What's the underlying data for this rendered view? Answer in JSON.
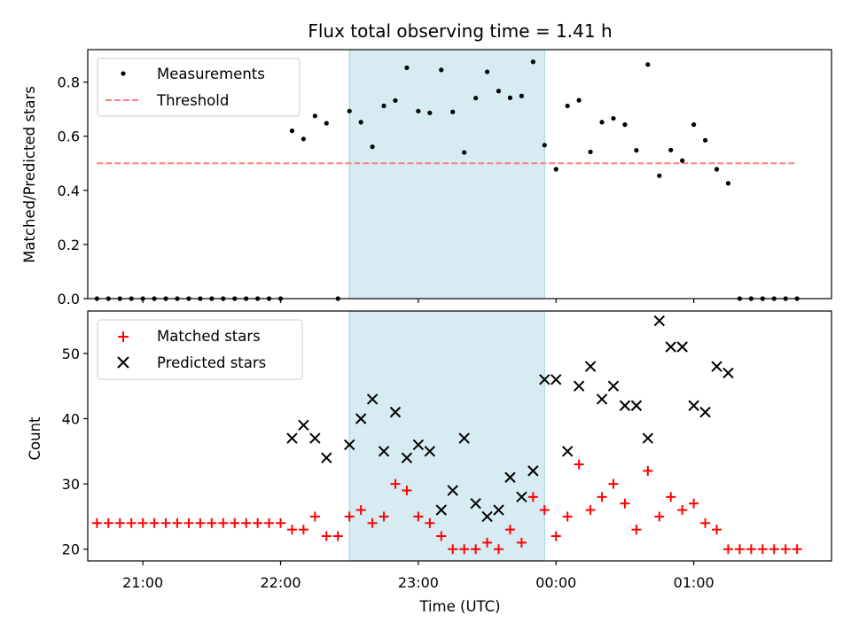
{
  "chart_data": [
    {
      "type": "scatter",
      "title": "Flux total observing time = 1.41 h",
      "xlabel": "",
      "ylabel": "Matched/Predicted stars",
      "ylim": [
        0,
        0.92
      ],
      "yticks": [
        "0.0",
        "0.2",
        "0.4",
        "0.6",
        "0.8"
      ],
      "xlim": [
        "20:36",
        "02:00"
      ],
      "observing_window": [
        "22:30",
        "23:55"
      ],
      "legend_position": "upper-left",
      "series": [
        {
          "name": "Measurements",
          "marker": "dot",
          "color": "#000000",
          "points": [
            [
              "20:40",
              0
            ],
            [
              "20:45",
              0
            ],
            [
              "20:50",
              0
            ],
            [
              "20:55",
              0
            ],
            [
              "21:00",
              0
            ],
            [
              "21:05",
              0
            ],
            [
              "21:10",
              0
            ],
            [
              "21:15",
              0
            ],
            [
              "21:20",
              0
            ],
            [
              "21:25",
              0
            ],
            [
              "21:30",
              0
            ],
            [
              "21:35",
              0
            ],
            [
              "21:40",
              0
            ],
            [
              "21:45",
              0
            ],
            [
              "21:50",
              0
            ],
            [
              "21:55",
              0
            ],
            [
              "22:00",
              0
            ],
            [
              "22:05",
              0.62
            ],
            [
              "22:10",
              0.59
            ],
            [
              "22:15",
              0.675
            ],
            [
              "22:20",
              0.648
            ],
            [
              "22:25",
              0
            ],
            [
              "22:30",
              0.693
            ],
            [
              "22:35",
              0.652
            ],
            [
              "22:40",
              0.561
            ],
            [
              "22:45",
              0.712
            ],
            [
              "22:50",
              0.732
            ],
            [
              "22:55",
              0.853
            ],
            [
              "23:00",
              0.693
            ],
            [
              "23:05",
              0.686
            ],
            [
              "23:10",
              0.845
            ],
            [
              "23:15",
              0.69
            ],
            [
              "23:20",
              0.54
            ],
            [
              "23:25",
              0.741
            ],
            [
              "23:30",
              0.838
            ],
            [
              "23:35",
              0.767
            ],
            [
              "23:40",
              0.742
            ],
            [
              "23:45",
              0.749
            ],
            [
              "23:50",
              0.875
            ],
            [
              "23:55",
              0.567
            ],
            [
              "00:00",
              0.478
            ],
            [
              "00:05",
              0.712
            ],
            [
              "00:10",
              0.733
            ],
            [
              "00:15",
              0.542
            ],
            [
              "00:20",
              0.652
            ],
            [
              "00:25",
              0.666
            ],
            [
              "00:30",
              0.643
            ],
            [
              "00:35",
              0.548
            ],
            [
              "00:40",
              0.865
            ],
            [
              "00:45",
              0.454
            ],
            [
              "00:50",
              0.549
            ],
            [
              "00:55",
              0.51
            ],
            [
              "01:00",
              0.643
            ],
            [
              "01:05",
              0.585
            ],
            [
              "01:10",
              0.478
            ],
            [
              "01:15",
              0.426
            ],
            [
              "01:20",
              0
            ],
            [
              "01:25",
              0
            ],
            [
              "01:30",
              0
            ],
            [
              "01:35",
              0
            ],
            [
              "01:40",
              0
            ],
            [
              "01:45",
              0
            ]
          ]
        },
        {
          "name": "Threshold",
          "style": "dashed",
          "color": "#ff7f7f",
          "points": [
            [
              "20:40",
              0.5
            ],
            [
              "01:45",
              0.5
            ]
          ]
        }
      ]
    },
    {
      "type": "scatter",
      "title": "",
      "xlabel": "Time (UTC)",
      "ylabel": "Count",
      "ylim": [
        18.2,
        56.5
      ],
      "yticks": [
        "20",
        "30",
        "40",
        "50"
      ],
      "xlim": [
        "20:36",
        "02:00"
      ],
      "xticks": [
        "21:00",
        "22:00",
        "23:00",
        "00:00",
        "01:00"
      ],
      "observing_window": [
        "22:30",
        "23:55"
      ],
      "legend_position": "upper-left",
      "series": [
        {
          "name": "Matched stars",
          "marker": "plus",
          "color": "#ff0000",
          "points": [
            [
              "20:40",
              24
            ],
            [
              "20:45",
              24
            ],
            [
              "20:50",
              24
            ],
            [
              "20:55",
              24
            ],
            [
              "21:00",
              24
            ],
            [
              "21:05",
              24
            ],
            [
              "21:10",
              24
            ],
            [
              "21:15",
              24
            ],
            [
              "21:20",
              24
            ],
            [
              "21:25",
              24
            ],
            [
              "21:30",
              24
            ],
            [
              "21:35",
              24
            ],
            [
              "21:40",
              24
            ],
            [
              "21:45",
              24
            ],
            [
              "21:50",
              24
            ],
            [
              "21:55",
              24
            ],
            [
              "22:00",
              24
            ],
            [
              "22:05",
              23
            ],
            [
              "22:10",
              23
            ],
            [
              "22:15",
              25
            ],
            [
              "22:20",
              22
            ],
            [
              "22:25",
              22
            ],
            [
              "22:30",
              25
            ],
            [
              "22:35",
              26
            ],
            [
              "22:40",
              24
            ],
            [
              "22:45",
              25
            ],
            [
              "22:50",
              30
            ],
            [
              "22:55",
              29
            ],
            [
              "23:00",
              25
            ],
            [
              "23:05",
              24
            ],
            [
              "23:10",
              22
            ],
            [
              "23:15",
              20
            ],
            [
              "23:20",
              20
            ],
            [
              "23:25",
              20
            ],
            [
              "23:30",
              21
            ],
            [
              "23:35",
              20
            ],
            [
              "23:40",
              23
            ],
            [
              "23:45",
              21
            ],
            [
              "23:50",
              28
            ],
            [
              "23:55",
              26
            ],
            [
              "00:00",
              22
            ],
            [
              "00:05",
              25
            ],
            [
              "00:10",
              33
            ],
            [
              "00:15",
              26
            ],
            [
              "00:20",
              28
            ],
            [
              "00:25",
              30
            ],
            [
              "00:30",
              27
            ],
            [
              "00:35",
              23
            ],
            [
              "00:40",
              32
            ],
            [
              "00:45",
              25
            ],
            [
              "00:50",
              28
            ],
            [
              "00:55",
              26
            ],
            [
              "01:00",
              27
            ],
            [
              "01:05",
              24
            ],
            [
              "01:10",
              23
            ],
            [
              "01:15",
              20
            ],
            [
              "01:20",
              20
            ],
            [
              "01:25",
              20
            ],
            [
              "01:30",
              20
            ],
            [
              "01:35",
              20
            ],
            [
              "01:40",
              20
            ],
            [
              "01:45",
              20
            ]
          ]
        },
        {
          "name": "Predicted stars",
          "marker": "x",
          "color": "#000000",
          "points": [
            [
              "22:05",
              37
            ],
            [
              "22:10",
              39
            ],
            [
              "22:15",
              37
            ],
            [
              "22:20",
              34
            ],
            [
              "22:30",
              36
            ],
            [
              "22:35",
              40
            ],
            [
              "22:40",
              43
            ],
            [
              "22:45",
              35
            ],
            [
              "22:50",
              41
            ],
            [
              "22:55",
              34
            ],
            [
              "23:00",
              36
            ],
            [
              "23:05",
              35
            ],
            [
              "23:10",
              26
            ],
            [
              "23:15",
              29
            ],
            [
              "23:20",
              37
            ],
            [
              "23:25",
              27
            ],
            [
              "23:30",
              25
            ],
            [
              "23:35",
              26
            ],
            [
              "23:40",
              31
            ],
            [
              "23:45",
              28
            ],
            [
              "23:50",
              32
            ],
            [
              "23:55",
              46
            ],
            [
              "00:00",
              46
            ],
            [
              "00:05",
              35
            ],
            [
              "00:10",
              45
            ],
            [
              "00:15",
              48
            ],
            [
              "00:20",
              43
            ],
            [
              "00:25",
              45
            ],
            [
              "00:30",
              42
            ],
            [
              "00:35",
              42
            ],
            [
              "00:40",
              37
            ],
            [
              "00:45",
              55
            ],
            [
              "00:50",
              51
            ],
            [
              "00:55",
              51
            ],
            [
              "01:00",
              42
            ],
            [
              "01:05",
              41
            ],
            [
              "01:10",
              48
            ],
            [
              "01:15",
              47
            ]
          ]
        }
      ]
    }
  ]
}
